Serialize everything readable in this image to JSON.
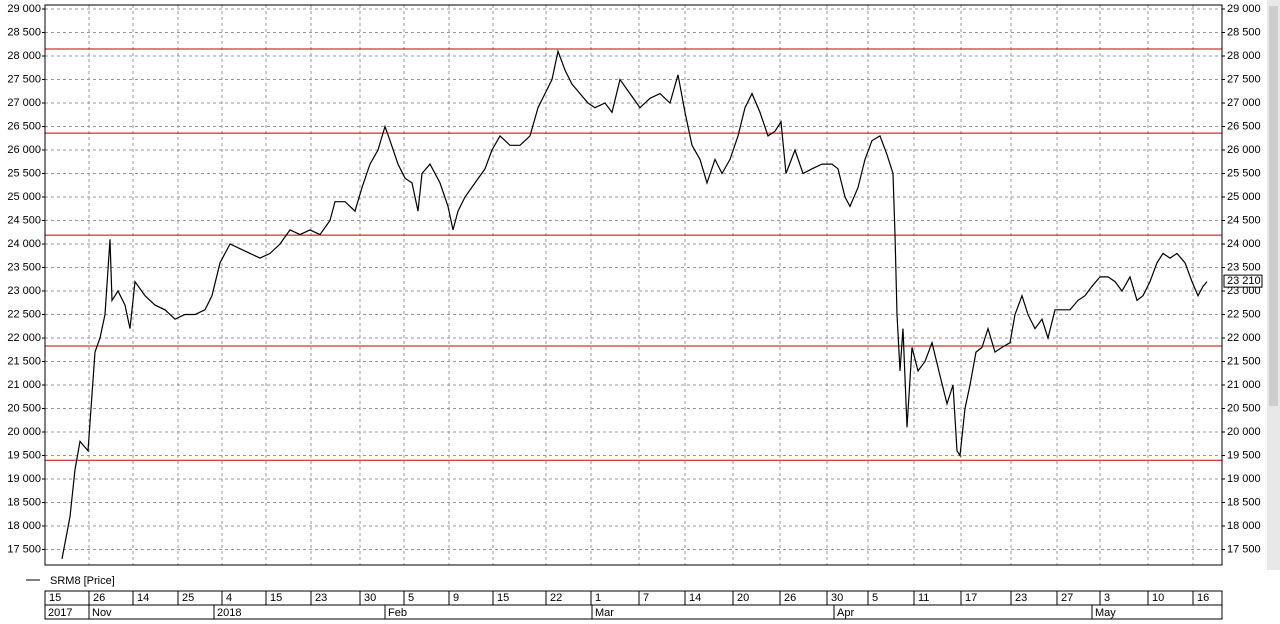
{
  "chart_data": {
    "type": "line",
    "xlim": [
      45,
      1222
    ],
    "ylim": [
      17170,
      29085
    ],
    "yticks": [
      {
        "value": 17500,
        "label": "17 500"
      },
      {
        "value": 18000,
        "label": "18 000"
      },
      {
        "value": 18500,
        "label": "18 500"
      },
      {
        "value": 19000,
        "label": "19 000"
      },
      {
        "value": 19500,
        "label": "19 500"
      },
      {
        "value": 20000,
        "label": "20 000"
      },
      {
        "value": 20500,
        "label": "20 500"
      },
      {
        "value": 21000,
        "label": "21 000"
      },
      {
        "value": 21500,
        "label": "21 500"
      },
      {
        "value": 22000,
        "label": "22 000"
      },
      {
        "value": 22500,
        "label": "22 500"
      },
      {
        "value": 23000,
        "label": "23 000"
      },
      {
        "value": 23500,
        "label": "23 500"
      },
      {
        "value": 24000,
        "label": "24 000"
      },
      {
        "value": 24500,
        "label": "24 500"
      },
      {
        "value": 25000,
        "label": "25 000"
      },
      {
        "value": 25500,
        "label": "25 500"
      },
      {
        "value": 26000,
        "label": "26 000"
      },
      {
        "value": 26500,
        "label": "26 500"
      },
      {
        "value": 27000,
        "label": "27 000"
      },
      {
        "value": 27500,
        "label": "27 500"
      },
      {
        "value": 28000,
        "label": "28 000"
      },
      {
        "value": 28500,
        "label": "28 500"
      },
      {
        "value": 29000,
        "label": "29 000"
      }
    ],
    "xticks": [
      {
        "value": 45,
        "label": "15"
      },
      {
        "value": 89,
        "label": "26"
      },
      {
        "value": 133,
        "label": "14"
      },
      {
        "value": 178,
        "label": "25"
      },
      {
        "value": 222,
        "label": "4"
      },
      {
        "value": 266,
        "label": "15"
      },
      {
        "value": 311,
        "label": "23"
      },
      {
        "value": 360,
        "label": "30"
      },
      {
        "value": 404,
        "label": "5"
      },
      {
        "value": 449,
        "label": "9"
      },
      {
        "value": 493,
        "label": "15"
      },
      {
        "value": 546,
        "label": "22"
      },
      {
        "value": 591,
        "label": "1"
      },
      {
        "value": 639,
        "label": "7"
      },
      {
        "value": 685,
        "label": "14"
      },
      {
        "value": 733,
        "label": "20"
      },
      {
        "value": 780,
        "label": "26"
      },
      {
        "value": 827,
        "label": "30"
      },
      {
        "value": 868,
        "label": "5"
      },
      {
        "value": 914,
        "label": "11"
      },
      {
        "value": 961,
        "label": "17"
      },
      {
        "value": 1011,
        "label": "23"
      },
      {
        "value": 1057,
        "label": "27"
      },
      {
        "value": 1100,
        "label": "3"
      },
      {
        "value": 1148,
        "label": "10"
      },
      {
        "value": 1193,
        "label": "16"
      }
    ],
    "month_ticks": [
      {
        "value": 45,
        "label": "2017"
      },
      {
        "value": 89,
        "label": "Nov"
      },
      {
        "value": 214,
        "label": "2018"
      },
      {
        "value": 385,
        "label": "Feb"
      },
      {
        "value": 592,
        "label": "Mar"
      },
      {
        "value": 834,
        "label": "Apr"
      },
      {
        "value": 1092,
        "label": "May"
      }
    ],
    "grid": true,
    "hlines": [
      28150,
      26360,
      24190,
      21830,
      19400
    ],
    "hline_color": "#c00000",
    "last_price": {
      "value": 23210,
      "label": "23 210"
    },
    "x": [
      62,
      70,
      75,
      80,
      88,
      95,
      100,
      105,
      110,
      112,
      118,
      125,
      130,
      135,
      145,
      155,
      165,
      175,
      185,
      195,
      205,
      212,
      220,
      230,
      240,
      250,
      260,
      270,
      280,
      290,
      300,
      310,
      320,
      330,
      335,
      345,
      355,
      362,
      370,
      378,
      385,
      390,
      398,
      405,
      412,
      418,
      422,
      430,
      440,
      448,
      453,
      458,
      465,
      475,
      485,
      492,
      500,
      510,
      520,
      530,
      538,
      545,
      552,
      558,
      565,
      572,
      580,
      588,
      595,
      605,
      612,
      620,
      630,
      640,
      650,
      660,
      670,
      678,
      685,
      692,
      700,
      707,
      715,
      722,
      730,
      738,
      745,
      752,
      760,
      768,
      775,
      781,
      786,
      795,
      803,
      812,
      822,
      832,
      838,
      845,
      850,
      858,
      865,
      872,
      880,
      887,
      893,
      895,
      897,
      900,
      903,
      907,
      912,
      918,
      925,
      932,
      940,
      947,
      953,
      957,
      960,
      965,
      970,
      976,
      982,
      988,
      995,
      1002,
      1010,
      1015,
      1022,
      1028,
      1035,
      1042,
      1048,
      1055,
      1062,
      1070,
      1078,
      1085,
      1092,
      1100,
      1108,
      1115,
      1122,
      1130,
      1137,
      1143,
      1150,
      1157,
      1163,
      1170,
      1177,
      1185,
      1192,
      1198,
      1203,
      1207
    ],
    "series": [
      {
        "name": "SRM8 [Price]",
        "color": "#000000",
        "values": [
          17300,
          18200,
          19200,
          19800,
          19600,
          21700,
          22000,
          22500,
          24100,
          22800,
          23000,
          22700,
          22200,
          23200,
          22900,
          22700,
          22600,
          22400,
          22500,
          22500,
          22600,
          22900,
          23600,
          24000,
          23900,
          23800,
          23700,
          23800,
          24000,
          24300,
          24200,
          24300,
          24200,
          24500,
          24900,
          24900,
          24700,
          25200,
          25700,
          26000,
          26500,
          26200,
          25700,
          25400,
          25300,
          24700,
          25500,
          25700,
          25300,
          24800,
          24300,
          24700,
          25000,
          25300,
          25600,
          26000,
          26300,
          26100,
          26100,
          26300,
          26900,
          27200,
          27500,
          28100,
          27700,
          27400,
          27200,
          27000,
          26900,
          27000,
          26800,
          27500,
          27200,
          26900,
          27100,
          27200,
          27000,
          27600,
          26800,
          26100,
          25800,
          25300,
          25800,
          25500,
          25800,
          26300,
          26900,
          27200,
          26800,
          26300,
          26400,
          26600,
          25500,
          26000,
          25500,
          25600,
          25700,
          25700,
          25600,
          25000,
          24800,
          25200,
          25800,
          26200,
          26300,
          25900,
          25500,
          24200,
          22500,
          21300,
          22200,
          20100,
          21800,
          21300,
          21500,
          21900,
          21200,
          20600,
          21000,
          19600,
          19500,
          20500,
          21000,
          21700,
          21800,
          22200,
          21700,
          21800,
          21900,
          22500,
          22900,
          22500,
          22200,
          22400,
          22000,
          22600,
          22600,
          22600,
          22800,
          22900,
          23100,
          23300,
          23300,
          23200,
          23000,
          23300,
          22800,
          22900,
          23200,
          23600,
          23800,
          23700,
          23800,
          23600,
          23200,
          22900,
          23100,
          23200
        ]
      }
    ]
  }
}
